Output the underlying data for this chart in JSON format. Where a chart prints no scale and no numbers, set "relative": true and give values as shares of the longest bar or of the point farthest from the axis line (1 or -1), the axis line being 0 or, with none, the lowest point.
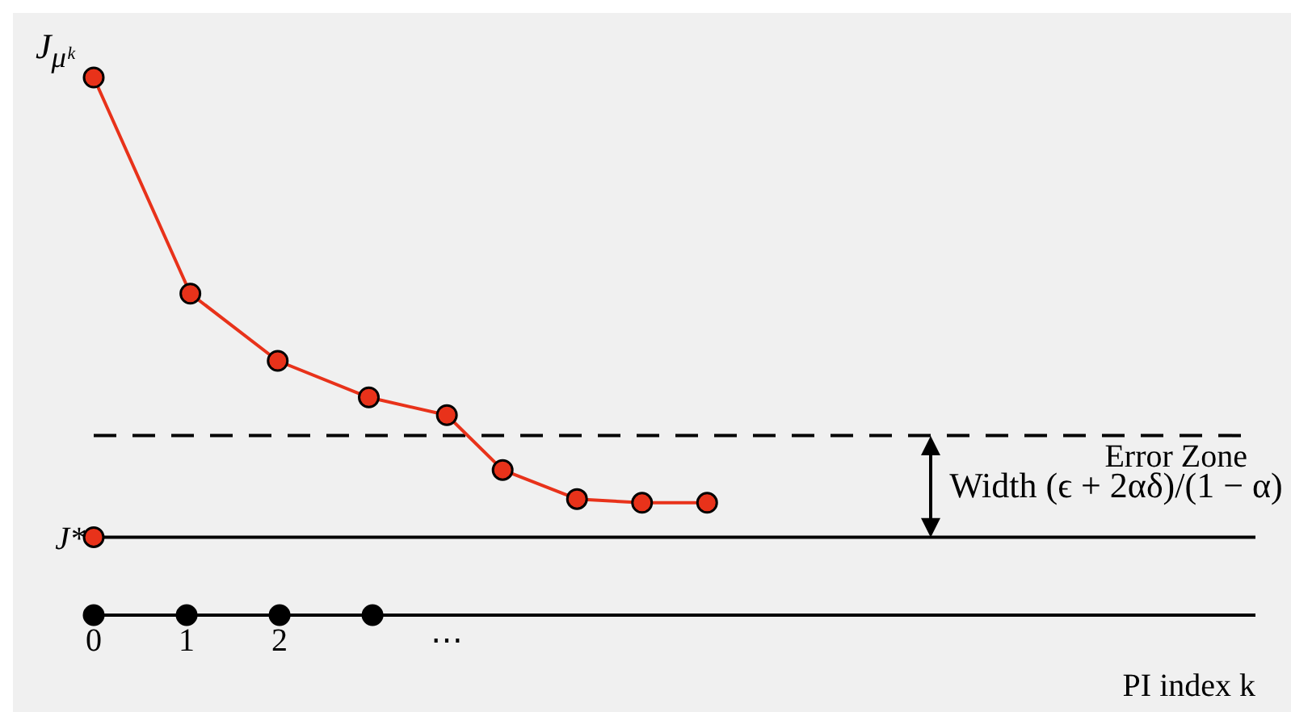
{
  "chart_data": {
    "type": "line",
    "relative": true,
    "ylabel": "J$_{μᵏ}$",
    "xlabel": "PI index k",
    "xlim": [
      0,
      12.5
    ],
    "xticks": [
      0,
      1,
      2,
      {
        "value": 3.8,
        "label": "⋯"
      }
    ],
    "marker": "circle",
    "series": [
      {
        "color": "#e8321a",
        "x": [
          0,
          1.04,
          1.98,
          2.96,
          3.8,
          4.4,
          5.2,
          5.9,
          6.6
        ],
        "values": [
          1,
          0.598,
          0.473,
          0.405,
          0.372,
          0.27,
          0.216,
          0.209,
          0.209
        ]
      },
      {
        "type": "scatter",
        "color": "#e8321a",
        "x": [
          0
        ],
        "values": [
          0.145
        ]
      },
      {
        "type": "scatter",
        "color": "#000000",
        "x": [
          0,
          1,
          2,
          3
        ],
        "values": [
          0,
          0,
          0,
          0
        ]
      }
    ],
    "ref_lines": [
      {
        "axis": "y",
        "value": 0.334,
        "label": "Error Zone",
        "line_style": "dashed",
        "color": "#000000"
      },
      {
        "axis": "y",
        "value": 0.145,
        "label": "J*",
        "line_style": "solid",
        "color": "#000000"
      }
    ],
    "annotations": [
      "Width (ϵ + 2αδ)/(1 − α)"
    ]
  }
}
